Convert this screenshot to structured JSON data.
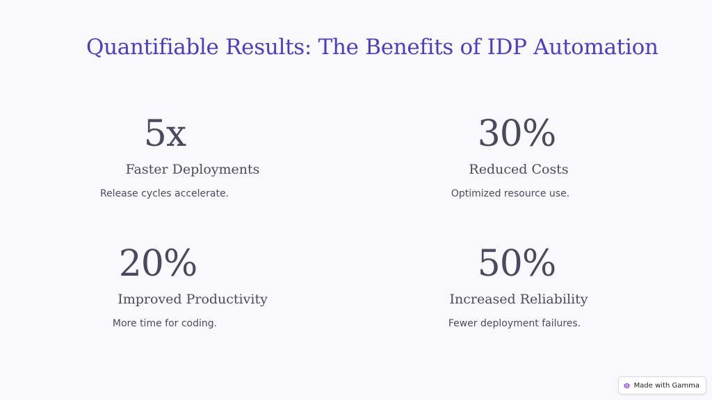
{
  "slide": {
    "title": "Quantifiable Results: The Benefits of IDP Automation"
  },
  "stats": [
    {
      "value": "5x",
      "label": "Faster Deployments",
      "description": "Release cycles accelerate."
    },
    {
      "value": "30%",
      "label": "Reduced Costs",
      "description": "Optimized resource use."
    },
    {
      "value": "20%",
      "label": "Improved Productivity",
      "description": "More time for coding."
    },
    {
      "value": "50%",
      "label": "Increased Reliability",
      "description": "Fewer deployment failures."
    }
  ],
  "badge": {
    "label": "Made with Gamma",
    "icon": "gamma-logo-icon"
  },
  "colors": {
    "title": "#4a3fbf",
    "text": "#4a4a5e",
    "background": "#f9f8fc",
    "badge_icon": "#8a3ff0"
  }
}
